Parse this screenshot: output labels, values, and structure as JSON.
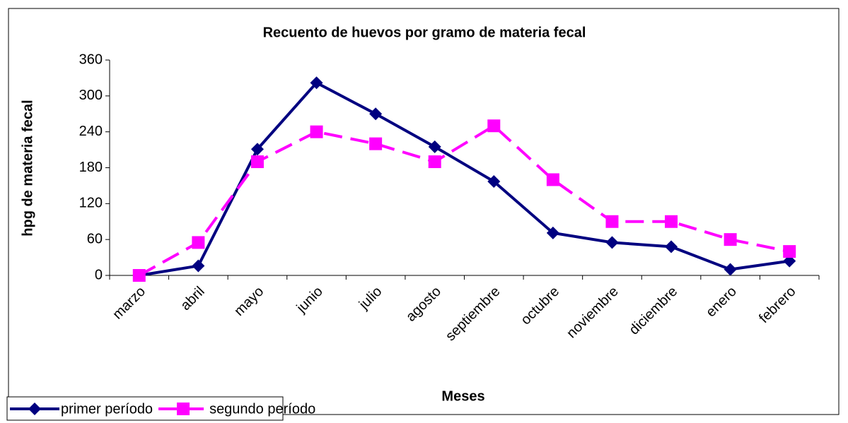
{
  "chart_data": {
    "type": "line",
    "title": "Recuento de huevos por gramo de materia fecal",
    "y_label": "hpg de materia fecal",
    "x_label": "Meses",
    "categories": [
      "marzo",
      "abril",
      "mayo",
      "junio",
      "julio",
      "agosto",
      "septiembre",
      "octubre",
      "noviembre",
      "diciembre",
      "enero",
      "febrero"
    ],
    "series": [
      {
        "name": "primer período",
        "color": "#000080",
        "marker": "diamond",
        "dashed": false,
        "values": [
          0,
          16,
          211,
          322,
          270,
          215,
          157,
          71,
          55,
          48,
          10,
          24
        ]
      },
      {
        "name": "segundo período",
        "color": "#ff00ff",
        "marker": "square",
        "dashed": true,
        "values": [
          0,
          55,
          190,
          240,
          220,
          190,
          250,
          160,
          90,
          90,
          60,
          40
        ]
      }
    ],
    "ylim": [
      0,
      360
    ],
    "yticks": [
      0,
      60,
      120,
      180,
      240,
      300,
      360
    ],
    "grid": false
  }
}
